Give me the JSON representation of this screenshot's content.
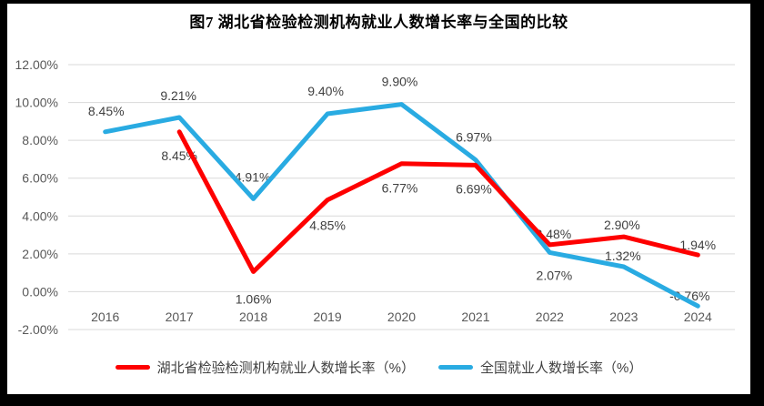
{
  "title": "图7 湖北省检验检测机构就业人数增长率与全国的比较",
  "chart_data": {
    "type": "line",
    "title": "图7 湖北省检验检测机构就业人数增长率与全国的比较",
    "categories": [
      "2016",
      "2017",
      "2018",
      "2019",
      "2020",
      "2021",
      "2022",
      "2023",
      "2024"
    ],
    "series": [
      {
        "name": "湖北省检验检测机构就业人数增长率（%）",
        "color": "#FE0000",
        "values": [
          null,
          8.45,
          1.06,
          4.85,
          6.77,
          6.69,
          2.48,
          2.9,
          1.94
        ],
        "labels": [
          "",
          "8.45%",
          "1.06%",
          "4.85%",
          "6.77%",
          "6.69%",
          "2.48%",
          "2.90%",
          "1.94%"
        ],
        "label_dx": [
          0,
          0,
          0,
          0,
          -2,
          -2,
          4,
          -2,
          0
        ],
        "label_dy": [
          0,
          26,
          30,
          28,
          27,
          26,
          -12,
          -13,
          -11
        ]
      },
      {
        "name": "全国就业人数增长率（%）",
        "color": "#29ABE2",
        "values": [
          8.45,
          9.21,
          4.91,
          9.4,
          9.9,
          6.97,
          2.07,
          1.32,
          -0.76
        ],
        "labels": [
          "8.45%",
          "9.21%",
          "4.91%",
          "9.40%",
          "9.90%",
          "6.97%",
          "2.07%",
          "1.32%",
          "-0.76%"
        ],
        "label_dx": [
          1,
          -1,
          -1,
          -2,
          -2,
          -2,
          5,
          -1,
          -9
        ],
        "label_dy": [
          -23,
          -24,
          -24,
          -25,
          -25,
          -25,
          25,
          -12,
          -11
        ]
      }
    ],
    "yticks": [
      {
        "label": "12.00%",
        "value": 12
      },
      {
        "label": "10.00%",
        "value": 10
      },
      {
        "label": "8.00%",
        "value": 8
      },
      {
        "label": "6.00%",
        "value": 6
      },
      {
        "label": "4.00%",
        "value": 4
      },
      {
        "label": "2.00%",
        "value": 2
      },
      {
        "label": "0.00%",
        "value": 0
      },
      {
        "label": "-2.00%",
        "value": -2
      }
    ],
    "ylim": [
      -2,
      12
    ],
    "xlabel": "",
    "ylabel": "",
    "grid": "horizontal",
    "legend_position": "bottom",
    "colors": {
      "grid": "#D9D9D9",
      "axis_text": "#595959",
      "data_label": "#404040",
      "frame": "#000000",
      "background": "#FFFFFF"
    }
  }
}
